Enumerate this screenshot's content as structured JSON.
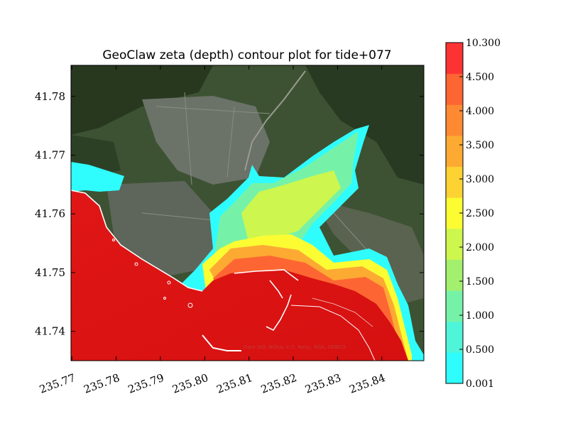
{
  "chart_data": {
    "type": "heatmap",
    "title": "GeoClaw zeta (depth) contour plot for tide+077",
    "xlabel": "",
    "ylabel": "",
    "xlim": [
      235.7698,
      235.8495
    ],
    "ylim": [
      41.735,
      41.7853
    ],
    "x_ticks": [
      "235.77",
      "235.78",
      "235.79",
      "235.80",
      "235.81",
      "235.82",
      "235.83",
      "235.84"
    ],
    "x_tick_values": [
      235.77,
      235.78,
      235.79,
      235.8,
      235.81,
      235.82,
      235.83,
      235.84
    ],
    "y_ticks": [
      "41.74",
      "41.75",
      "41.76",
      "41.77",
      "41.78"
    ],
    "y_tick_values": [
      41.74,
      41.75,
      41.76,
      41.77,
      41.78
    ],
    "background": "satellite imagery",
    "map_credit": "Data SIO, NOAA, U.S. Navy, NGA, GEBCO",
    "colorbar": {
      "levels": [
        "0.001",
        "0.500",
        "1.000",
        "1.500",
        "2.000",
        "2.500",
        "3.000",
        "3.500",
        "4.000",
        "4.500",
        "10.300"
      ],
      "level_values": [
        0.001,
        0.5,
        1.0,
        1.5,
        2.0,
        2.5,
        3.0,
        3.5,
        4.0,
        4.5,
        10.3
      ],
      "colors": [
        "#2ffdfd",
        "#4ef5d8",
        "#76f2a8",
        "#a3f06f",
        "#cdf74e",
        "#fcfc33",
        "#fdd233",
        "#fdaa33",
        "#fd8a33",
        "#fd6633",
        "#fd3333"
      ]
    }
  }
}
